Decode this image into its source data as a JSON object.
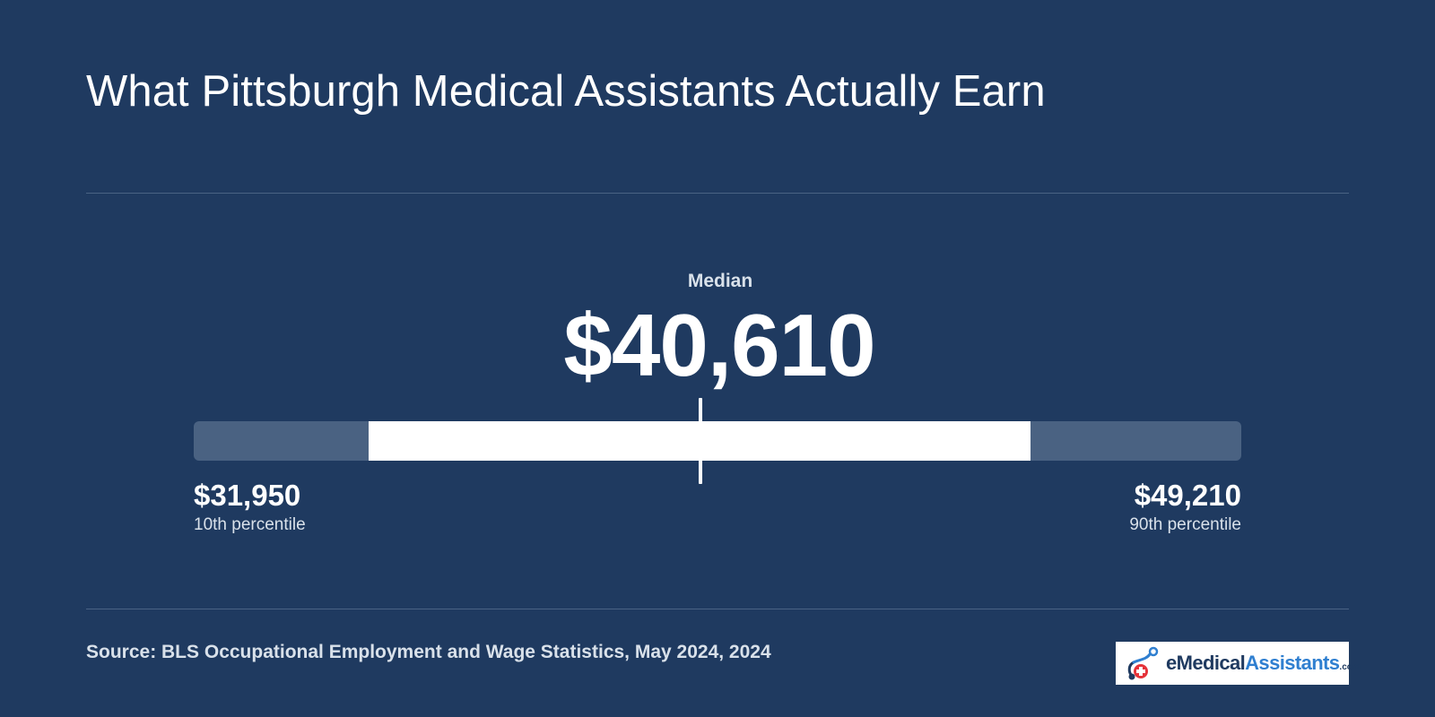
{
  "title": "What Pittsburgh Medical Assistants Actually Earn",
  "chart_data": {
    "type": "range",
    "median_label": "Median",
    "median_display": "$40,610",
    "median": 40610,
    "low": 31950,
    "high": 49210,
    "low_display": "$31,950",
    "high_display": "$49,210",
    "low_label": "10th percentile",
    "high_label": "90th percentile",
    "track_min": 27400,
    "track_max": 54700
  },
  "source": "Source: BLS Occupational Employment and Wage Statistics, May 2024, 2024",
  "logo": {
    "part1": "e",
    "part2": "Medical",
    "part3": "Assistants",
    "part4": ".com"
  },
  "colors": {
    "background": "#1f3a60",
    "fill": "#ffffff",
    "track": "#4a6282",
    "logo_accent": "#2f7fd0",
    "logo_cross": "#e5333a"
  }
}
